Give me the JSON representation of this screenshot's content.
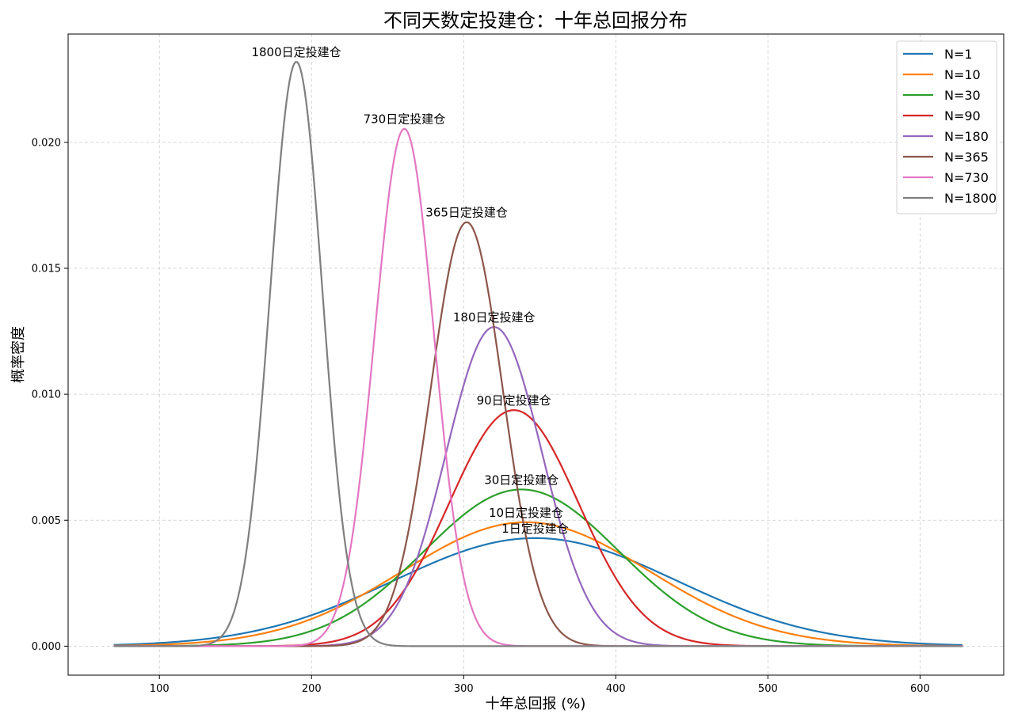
{
  "chart_data": {
    "type": "line",
    "title": "不同天数定投建仓：十年总回报分布",
    "xlabel": "十年总回报 (%)",
    "ylabel": "概率密度",
    "xlim": [
      40,
      655
    ],
    "ylim": [
      -0.00115,
      0.0243
    ],
    "x_ticks": [
      100,
      200,
      300,
      400,
      500,
      600
    ],
    "y_ticks": [
      0.0,
      0.005,
      0.01,
      0.015,
      0.02
    ],
    "y_tick_labels": [
      "0.000",
      "0.005",
      "0.010",
      "0.015",
      "0.020"
    ],
    "x_range": [
      70,
      628
    ],
    "grid": true,
    "legend_position": "top-right",
    "series": [
      {
        "name": "N=1",
        "color": "#1f77b4",
        "mean": 347,
        "std": 93,
        "peak": 0.00429,
        "annotation": "1日定投建仓"
      },
      {
        "name": "N=10",
        "color": "#ff7f0e",
        "mean": 341,
        "std": 81,
        "peak": 0.00492,
        "annotation": "10日定投建仓"
      },
      {
        "name": "N=30",
        "color": "#2ca02c",
        "mean": 338,
        "std": 64,
        "peak": 0.00622,
        "annotation": "30日定投建仓"
      },
      {
        "name": "N=90",
        "color": "#d62728",
        "mean": 333,
        "std": 42.5,
        "peak": 0.00937,
        "annotation": "90日定投建仓"
      },
      {
        "name": "N=180",
        "color": "#9467bd",
        "mean": 320,
        "std": 31.5,
        "peak": 0.01267,
        "annotation": "180日定投建仓"
      },
      {
        "name": "N=365",
        "color": "#8c564b",
        "mean": 302,
        "std": 23.7,
        "peak": 0.01683,
        "annotation": "365日定投建仓"
      },
      {
        "name": "N=730",
        "color": "#e377c2",
        "mean": 261,
        "std": 19.4,
        "peak": 0.02054,
        "annotation": "730日定投建仓"
      },
      {
        "name": "N=1800",
        "color": "#7f7f7f",
        "mean": 190,
        "std": 17.2,
        "peak": 0.0232,
        "annotation": "1800日定投建仓"
      }
    ]
  }
}
